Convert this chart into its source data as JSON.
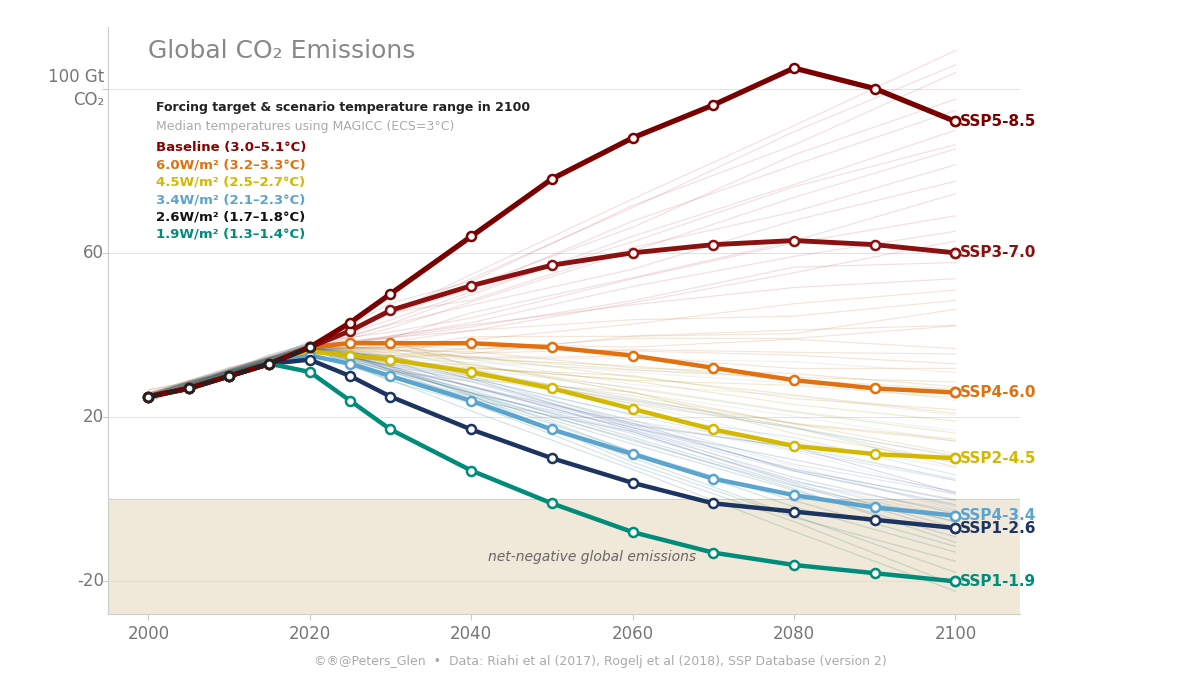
{
  "title": "Global CO₂ Emissions",
  "subtitle1": "Forcing target & scenario temperature range in 2100",
  "subtitle2": "Median temperatures using MAGICC (ECS=3°C)",
  "footer": "©®@Peters_Glen  •  Data: Riahi et al (2017), Rogelj et al (2018), SSP Database (version 2)",
  "net_negative_label": "net-negative global emissions",
  "years": [
    2000,
    2005,
    2010,
    2015,
    2020,
    2025,
    2030,
    2040,
    2050,
    2060,
    2070,
    2080,
    2090,
    2100
  ],
  "ssp585": [
    25,
    27,
    30,
    33,
    37,
    43,
    50,
    64,
    78,
    88,
    96,
    105,
    100,
    92
  ],
  "ssp370": [
    25,
    27,
    30,
    33,
    37,
    41,
    46,
    52,
    57,
    60,
    62,
    63,
    62,
    60
  ],
  "ssp460": [
    25,
    27,
    30,
    33,
    37,
    38,
    38,
    38,
    37,
    35,
    32,
    29,
    27,
    26
  ],
  "ssp245": [
    25,
    27,
    30,
    33,
    36,
    35,
    34,
    31,
    27,
    22,
    17,
    13,
    11,
    10
  ],
  "ssp126": [
    25,
    27,
    30,
    33,
    34,
    30,
    25,
    17,
    10,
    4,
    -1,
    -3,
    -5,
    -7
  ],
  "ssp119": [
    25,
    27,
    30,
    33,
    31,
    24,
    17,
    7,
    -1,
    -8,
    -13,
    -16,
    -18,
    -20
  ],
  "ssp434": [
    25,
    27,
    30,
    33,
    35,
    33,
    30,
    24,
    17,
    11,
    5,
    1,
    -2,
    -4
  ],
  "hist_years": [
    2000,
    2005,
    2010,
    2015,
    2020
  ],
  "hist_vals": [
    25,
    27,
    30,
    33,
    37
  ],
  "ssp585_color": "#7A0000",
  "ssp370_color": "#8B1010",
  "ssp460_color": "#E07010",
  "ssp245_color": "#D4B800",
  "ssp126_color": "#1C3461",
  "ssp119_color": "#008B7A",
  "ssp434_color": "#5BA4CF",
  "hist_color": "#222222",
  "bg_color": "#FFFFFF",
  "ax_color": "#FFFFFF",
  "legend_baseline_color": "#8B0000",
  "legend_6w_color": "#E07010",
  "legend_45w_color": "#D4B800",
  "legend_34w_color": "#5BA4CF",
  "legend_26w_color": "#111111",
  "legend_19w_color": "#008B7A",
  "net_neg_color": "#F0E8D8",
  "ytick_vals": [
    -20,
    20,
    60
  ],
  "ytick_100_label": "100 Gt\nCO₂",
  "xticks": [
    2000,
    2020,
    2040,
    2060,
    2080,
    2100
  ],
  "ylim": [
    -28,
    115
  ],
  "xlim": [
    1995,
    2108
  ]
}
